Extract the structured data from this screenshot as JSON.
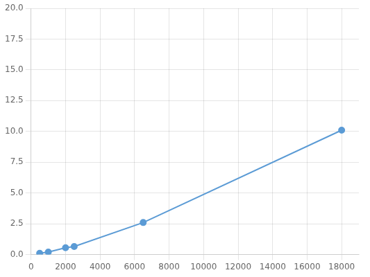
{
  "chart_data": {
    "type": "line",
    "x": [
      500,
      1000,
      2000,
      2500,
      6500,
      18000
    ],
    "values": [
      0.1,
      0.2,
      0.55,
      0.65,
      2.6,
      10.1
    ],
    "color": "#5b9bd5",
    "marker": "circle",
    "xlim": [
      0,
      19000
    ],
    "ylim": [
      0.0,
      20.0
    ],
    "xticks": [
      0,
      2000,
      4000,
      6000,
      8000,
      10000,
      12000,
      14000,
      16000,
      18000
    ],
    "yticks": [
      {
        "value": 0.0,
        "label": "0.0"
      },
      2.5,
      {
        "value": 5.0,
        "label": "5.0"
      },
      7.5,
      {
        "value": 10.0,
        "label": "10.0"
      },
      12.5,
      {
        "value": 15.0,
        "label": "15.0"
      },
      17.5,
      {
        "value": 20.0,
        "label": "20.0"
      }
    ],
    "grid": true
  }
}
